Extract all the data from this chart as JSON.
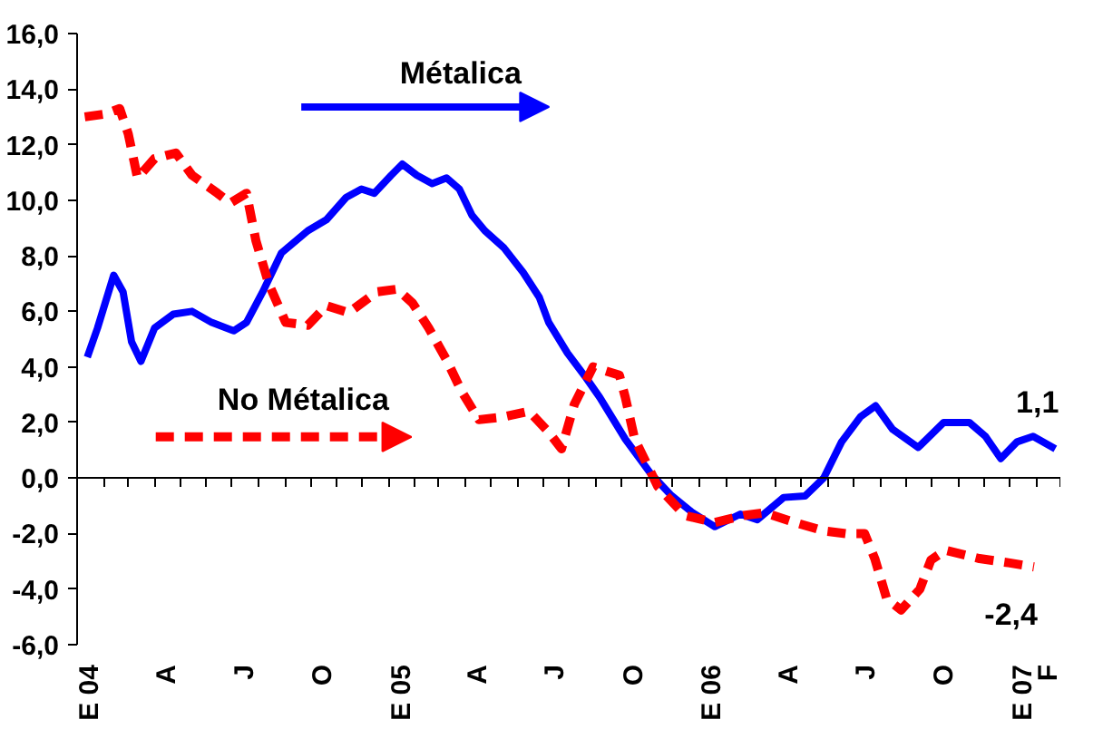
{
  "chart_data": {
    "type": "line",
    "x": [
      "2004-01-13",
      "2004-01-25",
      "2004-02-13",
      "2004-02-24",
      "2004-03-05",
      "2004-03-16",
      "2004-04-01",
      "2004-04-23",
      "2004-05-15",
      "2004-06-07",
      "2004-07-03",
      "2004-07-18",
      "2004-08-06",
      "2004-08-28",
      "2004-09-28",
      "2004-10-20",
      "2004-11-12",
      "2004-11-30",
      "2004-12-15",
      "2005-01-04",
      "2005-01-17",
      "2005-02-03",
      "2005-02-21",
      "2005-03-10",
      "2005-03-25",
      "2005-04-09",
      "2005-04-24",
      "2005-05-16",
      "2005-06-08",
      "2005-06-27",
      "2005-07-08",
      "2005-07-30",
      "2005-08-21",
      "2005-09-06",
      "2005-10-06",
      "2005-11-05",
      "2005-11-28",
      "2005-12-24",
      "2006-01-19",
      "2006-02-18",
      "2006-03-10",
      "2006-04-10",
      "2006-05-05",
      "2006-05-27",
      "2006-06-17",
      "2006-07-09",
      "2006-07-27",
      "2006-08-16",
      "2006-09-15",
      "2006-10-15",
      "2006-11-14",
      "2006-12-03",
      "2006-12-21",
      "2007-01-09",
      "2007-01-28",
      "2007-02-23"
    ],
    "series": [
      {
        "name": "Métalica",
        "color": "#0000ff",
        "line_style": "solid",
        "values": [
          4.35,
          5.4,
          7.3,
          6.7,
          4.9,
          4.2,
          5.4,
          5.9,
          6.0,
          5.6,
          5.3,
          5.6,
          6.7,
          8.1,
          8.9,
          9.3,
          10.1,
          10.4,
          10.25,
          10.9,
          11.3,
          10.9,
          10.6,
          10.8,
          10.4,
          9.45,
          8.9,
          8.3,
          7.4,
          6.5,
          5.6,
          4.5,
          3.6,
          2.9,
          1.4,
          0.15,
          -0.6,
          -1.25,
          -1.75,
          -1.3,
          -1.5,
          -0.7,
          -0.65,
          0.0,
          1.3,
          2.2,
          2.6,
          1.75,
          1.1,
          2.0,
          2.0,
          1.5,
          0.7,
          1.3,
          1.5,
          1.05
        ]
      },
      {
        "name": "No Métalica",
        "color": "#ff0000",
        "line_style": "dashed",
        "x": [
          "2004-01-10",
          "2004-02-02",
          "2004-02-20",
          "2004-03-01",
          "2004-03-12",
          "2004-04-01",
          "2004-04-26",
          "2004-05-15",
          "2004-06-14",
          "2004-06-29",
          "2004-07-18",
          "2004-07-29",
          "2004-08-13",
          "2004-09-02",
          "2004-09-28",
          "2004-10-20",
          "2004-11-15",
          "2004-12-18",
          "2005-01-11",
          "2005-01-29",
          "2005-02-17",
          "2005-03-10",
          "2005-03-28",
          "2005-04-17",
          "2005-05-16",
          "2005-06-15",
          "2005-07-08",
          "2005-07-23",
          "2005-08-07",
          "2005-08-29",
          "2005-09-29",
          "2005-10-06",
          "2005-10-17",
          "2005-11-02",
          "2005-11-13",
          "2005-12-15",
          "2006-01-19",
          "2006-02-22",
          "2006-03-19",
          "2006-04-23",
          "2006-05-27",
          "2006-06-22",
          "2006-07-14",
          "2006-07-26",
          "2006-08-09",
          "2006-08-26",
          "2006-09-17",
          "2006-09-30",
          "2006-10-17",
          "2006-11-26",
          "2006-12-30",
          "2007-01-29"
        ],
        "values": [
          13.0,
          13.1,
          13.3,
          12.4,
          10.8,
          11.5,
          11.7,
          10.9,
          10.25,
          9.9,
          10.25,
          8.55,
          7.0,
          5.6,
          5.5,
          6.2,
          5.95,
          6.7,
          6.8,
          6.3,
          5.4,
          4.25,
          3.1,
          2.1,
          2.2,
          2.4,
          1.65,
          1.05,
          2.65,
          4.0,
          3.7,
          2.9,
          1.4,
          0.4,
          -0.3,
          -1.35,
          -1.6,
          -1.35,
          -1.25,
          -1.6,
          -1.9,
          -2.0,
          -2.0,
          -2.9,
          -4.35,
          -4.75,
          -4.0,
          -2.95,
          -2.6,
          -2.9,
          -3.05,
          -3.2
        ]
      }
    ],
    "xlim": [
      "2004-01-01",
      "2007-03-01"
    ],
    "xticks": [
      {
        "value": "2004-01-01",
        "label": null
      },
      {
        "value": "2004-02-01",
        "label": null
      },
      {
        "value": "2004-03-01",
        "label": null
      },
      {
        "value": "2004-04-01",
        "label": null
      },
      {
        "value": "2004-05-01",
        "label": null
      },
      {
        "value": "2004-06-01",
        "label": null
      },
      {
        "value": "2004-07-01",
        "label": null
      },
      {
        "value": "2004-08-01",
        "label": null
      },
      {
        "value": "2004-09-01",
        "label": null
      },
      {
        "value": "2004-10-01",
        "label": null
      },
      {
        "value": "2004-11-01",
        "label": null
      },
      {
        "value": "2004-12-01",
        "label": null
      },
      {
        "value": "2005-01-01",
        "label": null
      },
      {
        "value": "2005-02-01",
        "label": null
      },
      {
        "value": "2005-03-01",
        "label": null
      },
      {
        "value": "2005-04-01",
        "label": null
      },
      {
        "value": "2005-05-01",
        "label": null
      },
      {
        "value": "2005-06-01",
        "label": null
      },
      {
        "value": "2005-07-01",
        "label": null
      },
      {
        "value": "2005-08-01",
        "label": null
      },
      {
        "value": "2005-09-01",
        "label": null
      },
      {
        "value": "2005-10-01",
        "label": null
      },
      {
        "value": "2005-11-01",
        "label": null
      },
      {
        "value": "2005-12-01",
        "label": null
      },
      {
        "value": "2006-01-01",
        "label": null
      },
      {
        "value": "2006-02-01",
        "label": null
      },
      {
        "value": "2006-03-01",
        "label": null
      },
      {
        "value": "2006-04-01",
        "label": null
      },
      {
        "value": "2006-05-01",
        "label": null
      },
      {
        "value": "2006-06-01",
        "label": null
      },
      {
        "value": "2006-07-01",
        "label": null
      },
      {
        "value": "2006-08-01",
        "label": null
      },
      {
        "value": "2006-09-01",
        "label": null
      },
      {
        "value": "2006-10-01",
        "label": null
      },
      {
        "value": "2006-11-01",
        "label": null
      },
      {
        "value": "2006-12-01",
        "label": null
      },
      {
        "value": "2007-01-01",
        "label": null
      },
      {
        "value": "2007-02-01",
        "label": null
      },
      {
        "value": "2007-03-01",
        "label": null
      },
      {
        "value": "2004-01-16",
        "label": "E 04"
      },
      {
        "value": "2004-04-16",
        "label": "A"
      },
      {
        "value": "2004-07-16",
        "label": "J"
      },
      {
        "value": "2004-10-16",
        "label": "O"
      },
      {
        "value": "2005-01-16",
        "label": "E 05"
      },
      {
        "value": "2005-04-16",
        "label": "A"
      },
      {
        "value": "2005-07-16",
        "label": "J"
      },
      {
        "value": "2005-10-16",
        "label": "O"
      },
      {
        "value": "2006-01-16",
        "label": "E 06"
      },
      {
        "value": "2006-04-16",
        "label": "A"
      },
      {
        "value": "2006-07-16",
        "label": "J"
      },
      {
        "value": "2006-10-16",
        "label": "O"
      },
      {
        "value": "2007-01-16",
        "label": "E 07"
      },
      {
        "value": "2007-02-15",
        "label": "F"
      }
    ],
    "ylim": [
      -6,
      16
    ],
    "yticks": [
      {
        "value": -6,
        "label": "-6,0"
      },
      {
        "value": -4,
        "label": "-4,0"
      },
      {
        "value": -2,
        "label": "-2,0"
      },
      {
        "value": 0,
        "label": "0,0"
      },
      {
        "value": 2,
        "label": "2,0"
      },
      {
        "value": 4,
        "label": "4,0"
      },
      {
        "value": 6,
        "label": "6,0"
      },
      {
        "value": 8,
        "label": "8,0"
      },
      {
        "value": 10,
        "label": "10,0"
      },
      {
        "value": 12,
        "label": "12,0"
      },
      {
        "value": 14,
        "label": "14,0"
      },
      {
        "value": 16,
        "label": "16,0"
      }
    ],
    "annotations": [
      "1,1",
      "-2,4"
    ],
    "legend": "top left",
    "marker": "none"
  }
}
